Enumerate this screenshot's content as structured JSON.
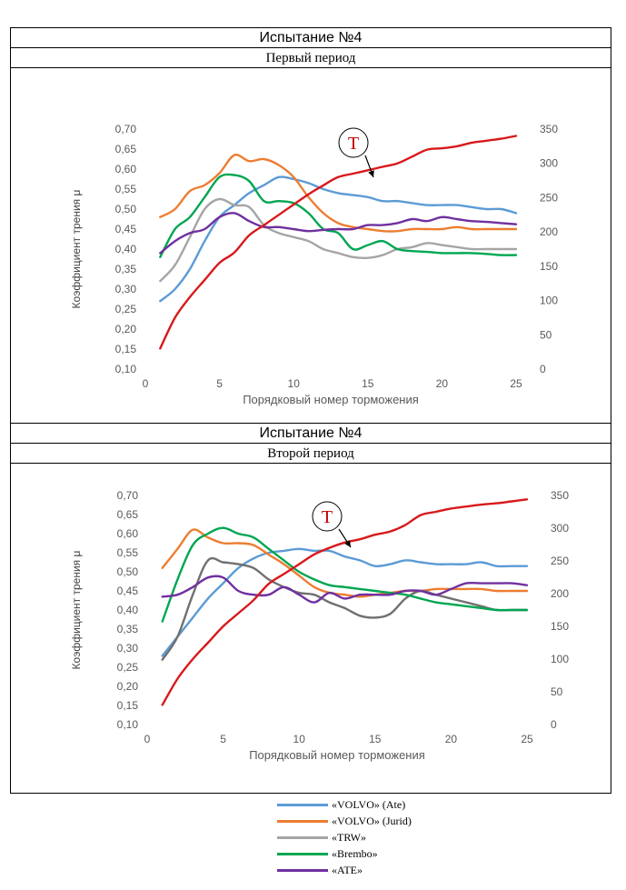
{
  "panels": [
    {
      "title": "Испытание №4",
      "subtitle": "Первый период"
    },
    {
      "title": "Испытание №4",
      "subtitle": "Второй период"
    }
  ],
  "legend": [
    {
      "label": "«VOLVO» (Ate)",
      "color": "#5b9bd5"
    },
    {
      "label": "«VOLVO» (Jurid)",
      "color": "#ed7d31"
    },
    {
      "label": "«TRW»",
      "color": "#a5a5a5"
    },
    {
      "label": "«Brembo»",
      "color": "#00a651"
    },
    {
      "label": "«ATE»",
      "color": "#7030a0"
    }
  ],
  "chart_data": [
    {
      "type": "line",
      "xlabel": "Порядковый номер торможения",
      "ylabel": "Коэффициент трения μ",
      "xlim": [
        0,
        25
      ],
      "xticks": [
        "0",
        "5",
        "10",
        "15",
        "20",
        "25"
      ],
      "ylim": [
        0.1,
        0.7
      ],
      "yticks": [
        "0,10",
        "0,15",
        "0,20",
        "0,25",
        "0,30",
        "0,35",
        "0,40",
        "0,45",
        "0,50",
        "0,55",
        "0,60",
        "0,65",
        "0,70"
      ],
      "y2lim": [
        0,
        350
      ],
      "y2ticks": [
        "0",
        "50",
        "100",
        "150",
        "200",
        "250",
        "300",
        "350"
      ],
      "annotation": "T",
      "series": [
        {
          "name": "«VOLVO» (Ate)",
          "color": "#5b9bd5",
          "axis": "left",
          "x": [
            1,
            2,
            3,
            4,
            5,
            6,
            7,
            8,
            9,
            10,
            11,
            12,
            13,
            14,
            15,
            16,
            17,
            18,
            19,
            20,
            21,
            22,
            23,
            24,
            25
          ],
          "y": [
            0.27,
            0.3,
            0.35,
            0.42,
            0.48,
            0.51,
            0.54,
            0.56,
            0.58,
            0.575,
            0.565,
            0.55,
            0.54,
            0.535,
            0.53,
            0.52,
            0.52,
            0.515,
            0.51,
            0.51,
            0.51,
            0.505,
            0.5,
            0.5,
            0.49
          ]
        },
        {
          "name": "«VOLVO» (Jurid)",
          "color": "#ed7d31",
          "axis": "left",
          "x": [
            1,
            2,
            3,
            4,
            5,
            6,
            7,
            8,
            9,
            10,
            11,
            12,
            13,
            14,
            15,
            16,
            17,
            18,
            19,
            20,
            21,
            22,
            23,
            24,
            25
          ],
          "y": [
            0.48,
            0.5,
            0.545,
            0.56,
            0.59,
            0.635,
            0.62,
            0.625,
            0.61,
            0.58,
            0.53,
            0.49,
            0.465,
            0.455,
            0.45,
            0.445,
            0.445,
            0.45,
            0.45,
            0.45,
            0.455,
            0.45,
            0.45,
            0.45,
            0.45
          ]
        },
        {
          "name": "«TRW»",
          "color": "#a5a5a5",
          "axis": "left",
          "x": [
            1,
            2,
            3,
            4,
            5,
            6,
            7,
            8,
            9,
            10,
            11,
            12,
            13,
            14,
            15,
            16,
            17,
            18,
            19,
            20,
            21,
            22,
            23,
            24,
            25
          ],
          "y": [
            0.32,
            0.36,
            0.43,
            0.5,
            0.525,
            0.51,
            0.505,
            0.46,
            0.44,
            0.43,
            0.42,
            0.4,
            0.39,
            0.38,
            0.378,
            0.385,
            0.4,
            0.405,
            0.415,
            0.41,
            0.405,
            0.4,
            0.4,
            0.4,
            0.4
          ]
        },
        {
          "name": "«Brembo»",
          "color": "#00a651",
          "axis": "left",
          "x": [
            1,
            2,
            3,
            4,
            5,
            6,
            7,
            8,
            9,
            10,
            11,
            12,
            13,
            14,
            15,
            16,
            17,
            18,
            19,
            20,
            21,
            22,
            23,
            24,
            25
          ],
          "y": [
            0.38,
            0.45,
            0.48,
            0.53,
            0.58,
            0.585,
            0.57,
            0.52,
            0.52,
            0.515,
            0.49,
            0.45,
            0.44,
            0.4,
            0.41,
            0.42,
            0.4,
            0.395,
            0.393,
            0.39,
            0.39,
            0.39,
            0.388,
            0.385,
            0.385
          ]
        },
        {
          "name": "«ATE»",
          "color": "#7030a0",
          "axis": "left",
          "x": [
            1,
            2,
            3,
            4,
            5,
            6,
            7,
            8,
            9,
            10,
            11,
            12,
            13,
            14,
            15,
            16,
            17,
            18,
            19,
            20,
            21,
            22,
            23,
            24,
            25
          ],
          "y": [
            0.39,
            0.42,
            0.44,
            0.45,
            0.48,
            0.49,
            0.47,
            0.455,
            0.455,
            0.45,
            0.445,
            0.448,
            0.45,
            0.45,
            0.46,
            0.46,
            0.465,
            0.475,
            0.47,
            0.48,
            0.475,
            0.47,
            0.468,
            0.465,
            0.462
          ]
        },
        {
          "name": "T",
          "color": "#d7191c",
          "axis": "right",
          "x": [
            1,
            2,
            3,
            4,
            5,
            6,
            7,
            8,
            9,
            10,
            11,
            12,
            13,
            14,
            15,
            16,
            17,
            18,
            19,
            20,
            21,
            22,
            23,
            24,
            25
          ],
          "y": [
            30,
            75,
            105,
            130,
            155,
            170,
            195,
            210,
            225,
            240,
            255,
            268,
            280,
            285,
            290,
            295,
            300,
            310,
            320,
            322,
            325,
            330,
            333,
            336,
            340
          ]
        }
      ]
    },
    {
      "type": "line",
      "xlabel": "Порядковый номер торможения",
      "ylabel": "Коэффициент трения μ",
      "xlim": [
        0,
        25
      ],
      "xticks": [
        "0",
        "5",
        "10",
        "15",
        "20",
        "25"
      ],
      "ylim": [
        0.1,
        0.7
      ],
      "yticks": [
        "0,10",
        "0,15",
        "0,20",
        "0,25",
        "0,30",
        "0,35",
        "0,40",
        "0,45",
        "0,50",
        "0,55",
        "0,60",
        "0,65",
        "0,70"
      ],
      "y2lim": [
        0,
        350
      ],
      "y2ticks": [
        "0",
        "50",
        "100",
        "150",
        "200",
        "250",
        "300",
        "350"
      ],
      "annotation": "T",
      "series": [
        {
          "name": "«VOLVO» (Ate)",
          "color": "#5b9bd5",
          "axis": "left",
          "x": [
            1,
            2,
            3,
            4,
            5,
            6,
            7,
            8,
            9,
            10,
            11,
            12,
            13,
            14,
            15,
            16,
            17,
            18,
            19,
            20,
            21,
            22,
            23,
            24,
            25
          ],
          "y": [
            0.28,
            0.33,
            0.38,
            0.43,
            0.47,
            0.51,
            0.535,
            0.55,
            0.555,
            0.56,
            0.555,
            0.555,
            0.54,
            0.53,
            0.515,
            0.52,
            0.53,
            0.525,
            0.52,
            0.52,
            0.52,
            0.525,
            0.515,
            0.515,
            0.515
          ]
        },
        {
          "name": "«VOLVO» (Jurid)",
          "color": "#ed7d31",
          "axis": "left",
          "x": [
            1,
            2,
            3,
            4,
            5,
            6,
            7,
            8,
            9,
            10,
            11,
            12,
            13,
            14,
            15,
            16,
            17,
            18,
            19,
            20,
            21,
            22,
            23,
            24,
            25
          ],
          "y": [
            0.51,
            0.56,
            0.61,
            0.59,
            0.575,
            0.575,
            0.57,
            0.545,
            0.52,
            0.49,
            0.46,
            0.445,
            0.44,
            0.435,
            0.44,
            0.445,
            0.45,
            0.45,
            0.455,
            0.455,
            0.455,
            0.455,
            0.45,
            0.45,
            0.45
          ]
        },
        {
          "name": "«TRW»",
          "color": "#707070",
          "axis": "left",
          "x": [
            1,
            2,
            3,
            4,
            5,
            6,
            7,
            8,
            9,
            10,
            11,
            12,
            13,
            14,
            15,
            16,
            17,
            18,
            19,
            20,
            21,
            22,
            23,
            24,
            25
          ],
          "y": [
            0.27,
            0.33,
            0.44,
            0.53,
            0.525,
            0.52,
            0.51,
            0.48,
            0.46,
            0.445,
            0.44,
            0.42,
            0.405,
            0.385,
            0.38,
            0.39,
            0.43,
            0.45,
            0.44,
            0.43,
            0.42,
            0.41,
            0.4,
            0.4,
            0.4
          ]
        },
        {
          "name": "«Brembo»",
          "color": "#00a651",
          "axis": "left",
          "x": [
            1,
            2,
            3,
            4,
            5,
            6,
            7,
            8,
            9,
            10,
            11,
            12,
            13,
            14,
            15,
            16,
            17,
            18,
            19,
            20,
            21,
            22,
            23,
            24,
            25
          ],
          "y": [
            0.37,
            0.48,
            0.57,
            0.6,
            0.615,
            0.6,
            0.59,
            0.56,
            0.53,
            0.5,
            0.48,
            0.465,
            0.46,
            0.455,
            0.45,
            0.445,
            0.44,
            0.43,
            0.42,
            0.415,
            0.41,
            0.405,
            0.4,
            0.4,
            0.4
          ]
        },
        {
          "name": "«ATE»",
          "color": "#7030a0",
          "axis": "left",
          "x": [
            1,
            2,
            3,
            4,
            5,
            6,
            7,
            8,
            9,
            10,
            11,
            12,
            13,
            14,
            15,
            16,
            17,
            18,
            19,
            20,
            21,
            22,
            23,
            24,
            25
          ],
          "y": [
            0.435,
            0.44,
            0.46,
            0.485,
            0.485,
            0.45,
            0.44,
            0.44,
            0.46,
            0.44,
            0.42,
            0.445,
            0.43,
            0.44,
            0.44,
            0.44,
            0.45,
            0.45,
            0.44,
            0.455,
            0.47,
            0.47,
            0.47,
            0.47,
            0.465
          ]
        },
        {
          "name": "T",
          "color": "#d7191c",
          "axis": "right",
          "x": [
            1,
            2,
            3,
            4,
            5,
            6,
            7,
            8,
            9,
            10,
            11,
            12,
            13,
            14,
            15,
            16,
            17,
            18,
            19,
            20,
            21,
            22,
            23,
            24,
            25
          ],
          "y": [
            30,
            70,
            100,
            125,
            150,
            170,
            190,
            215,
            230,
            245,
            260,
            270,
            278,
            283,
            290,
            295,
            305,
            320,
            325,
            330,
            333,
            336,
            338,
            341,
            344
          ]
        }
      ]
    }
  ]
}
